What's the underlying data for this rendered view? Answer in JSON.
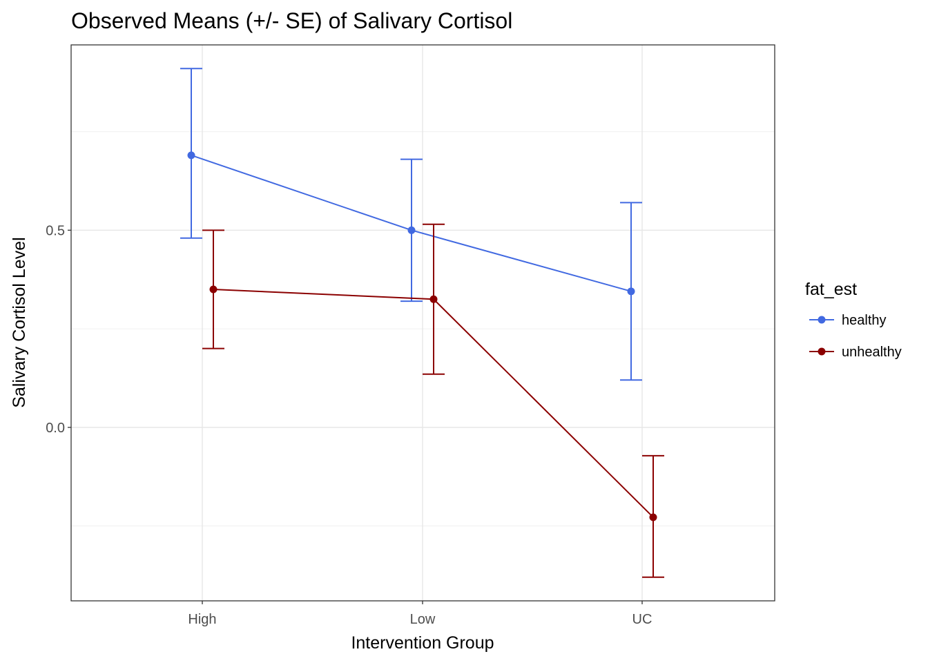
{
  "chart_data": {
    "type": "line",
    "title": "Observed Means (+/- SE) of Salivary Cortisol",
    "xlabel": "Intervention Group",
    "ylabel": "Salivary Cortisol Level",
    "categories": [
      "High",
      "Low",
      "UC"
    ],
    "ylim": [
      -0.44,
      0.97
    ],
    "yticks": [
      0.0,
      0.5
    ],
    "ytick_labels": [
      "0.0",
      "0.5"
    ],
    "minor_gridlines_y": [
      -0.25,
      0.25,
      0.75
    ],
    "grid": true,
    "legend": {
      "title": "fat_est",
      "placement": "right"
    },
    "series": [
      {
        "name": "healthy",
        "color": "#4169E1",
        "values": [
          0.69,
          0.5,
          0.345
        ],
        "lower": [
          0.48,
          0.32,
          0.12
        ],
        "upper": [
          0.91,
          0.68,
          0.57
        ]
      },
      {
        "name": "unhealthy",
        "color": "#8B0000",
        "values": [
          0.35,
          0.325,
          -0.228
        ],
        "lower": [
          0.2,
          0.135,
          -0.38
        ],
        "upper": [
          0.5,
          0.515,
          -0.072
        ]
      }
    ]
  }
}
